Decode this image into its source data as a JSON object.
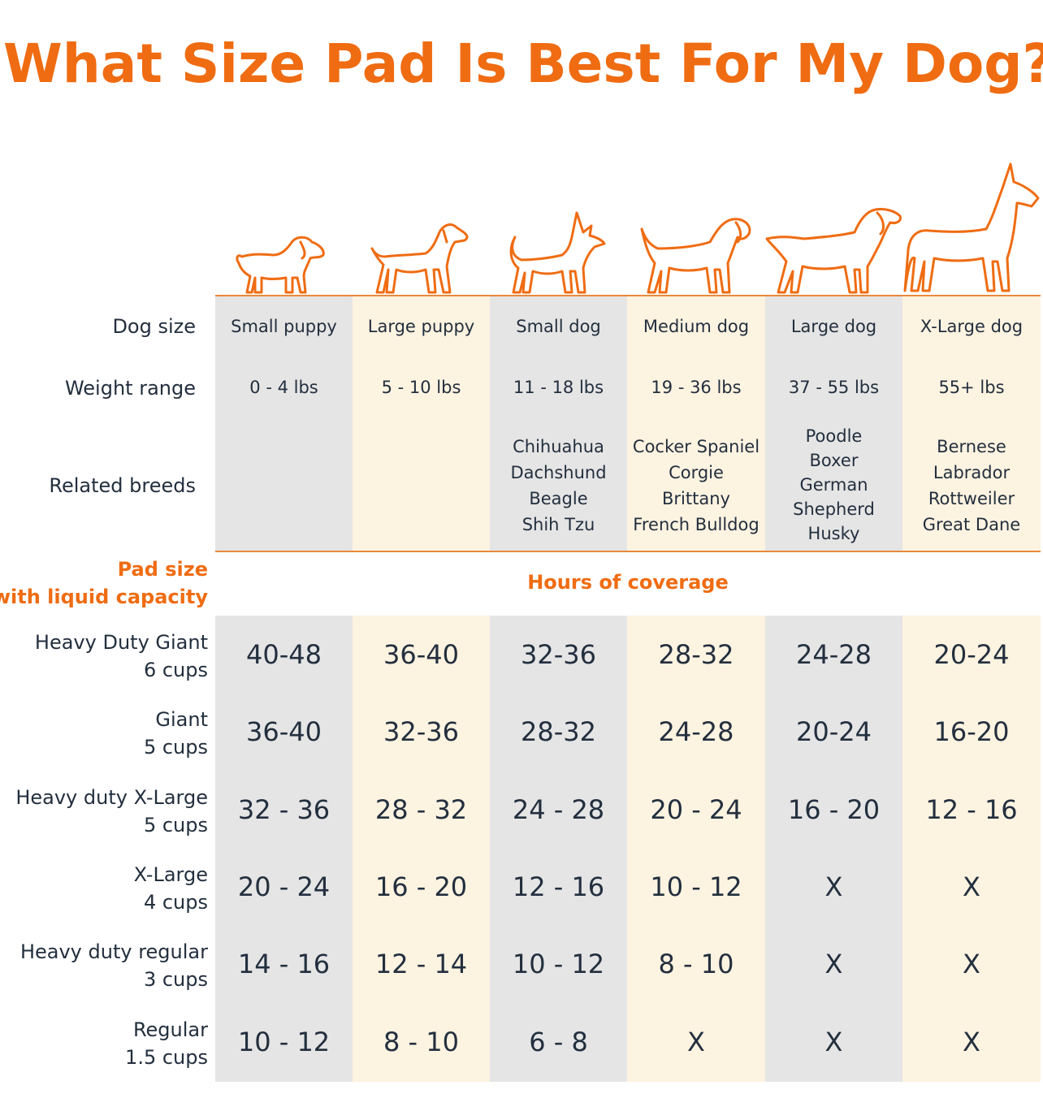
{
  "title": "What Size Pad Is Best For My Dog?",
  "colors": {
    "accent": "#ef6c12",
    "gray_col": "#e5e5e5",
    "cream_col": "#fdf3e1"
  },
  "row_labels": {
    "dog_size": "Dog size",
    "weight_range": "Weight range",
    "related_breeds": "Related breeds"
  },
  "pad_size_heading": {
    "line1": "Pad size",
    "line2": "with liquid capacity"
  },
  "hours_heading": "Hours of coverage",
  "dogs": [
    {
      "icon": "small-puppy-icon",
      "size": "Small puppy",
      "weight": "0 - 4 lbs",
      "breeds": []
    },
    {
      "icon": "large-puppy-icon",
      "size": "Large puppy",
      "weight": "5 - 10 lbs",
      "breeds": []
    },
    {
      "icon": "small-dog-icon",
      "size": "Small dog",
      "weight": "11 - 18 lbs",
      "breeds": [
        "Chihuahua",
        "Dachshund",
        "Beagle",
        "Shih Tzu"
      ]
    },
    {
      "icon": "medium-dog-icon",
      "size": "Medium dog",
      "weight": "19 - 36 lbs",
      "breeds": [
        "Cocker Spaniel",
        "Corgie",
        "Brittany",
        "French Bulldog"
      ]
    },
    {
      "icon": "large-dog-icon",
      "size": "Large dog",
      "weight": "37 - 55 lbs",
      "breeds": [
        "Poodle",
        "Boxer",
        "German",
        "Shepherd",
        "Husky"
      ]
    },
    {
      "icon": "xlarge-dog-icon",
      "size": "X-Large dog",
      "weight": "55+ lbs",
      "breeds": [
        "Bernese",
        "Labrador",
        "Rottweiler",
        "Great Dane"
      ]
    }
  ],
  "pads": [
    {
      "name": "Heavy Duty Giant",
      "capacity": "6 cups",
      "hours": [
        "40-48",
        "36-40",
        "32-36",
        "28-32",
        "24-28",
        "20-24"
      ]
    },
    {
      "name": "Giant",
      "capacity": "5 cups",
      "hours": [
        "36-40",
        "32-36",
        "28-32",
        "24-28",
        "20-24",
        "16-20"
      ]
    },
    {
      "name": "Heavy duty X-Large",
      "capacity": "5 cups",
      "hours": [
        "32 - 36",
        "28 - 32",
        "24 - 28",
        "20 - 24",
        "16 - 20",
        "12 - 16"
      ]
    },
    {
      "name": "X-Large",
      "capacity": "4 cups",
      "hours": [
        "20 - 24",
        "16 - 20",
        "12 - 16",
        "10 - 12",
        "X",
        "X"
      ]
    },
    {
      "name": "Heavy duty regular",
      "capacity": "3 cups",
      "hours": [
        "14 - 16",
        "12 - 14",
        "10 - 12",
        "8 - 10",
        "X",
        "X"
      ]
    },
    {
      "name": "Regular",
      "capacity": "1.5 cups",
      "hours": [
        "10 - 12",
        "8 - 10",
        "6 - 8",
        "X",
        "X",
        "X"
      ]
    }
  ]
}
